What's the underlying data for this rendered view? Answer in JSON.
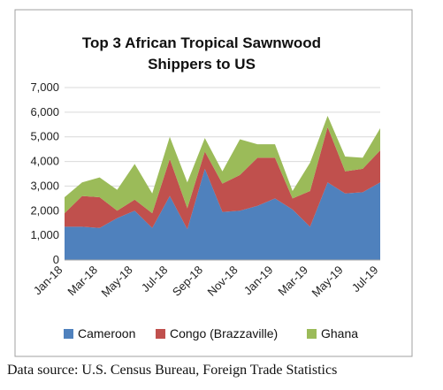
{
  "source_note": "Data source: U.S. Census Bureau, Foreign Trade Statistics",
  "chart_data": {
    "type": "area",
    "stacked": true,
    "title": "Top 3 African Tropical Sawnwood",
    "subtitle": "Shippers to US",
    "ylim": [
      0,
      7000
    ],
    "yticks": [
      "0",
      "1,000",
      "2,000",
      "3,000",
      "4,000",
      "5,000",
      "6,000",
      "7,000"
    ],
    "ytick_values": [
      0,
      1000,
      2000,
      3000,
      4000,
      5000,
      6000,
      7000
    ],
    "grid": true,
    "legend_position": "bottom",
    "x": [
      "Jan-18",
      "Feb-18",
      "Mar-18",
      "Apr-18",
      "May-18",
      "Jun-18",
      "Jul-18",
      "Aug-18",
      "Sep-18",
      "Oct-18",
      "Nov-18",
      "Dec-18",
      "Jan-19",
      "Feb-19",
      "Mar-19",
      "Apr-19",
      "May-19",
      "Jun-19",
      "Jul-19"
    ],
    "x_tick_labels": [
      "Jan-18",
      "Mar-18",
      "May-18",
      "Jul-18",
      "Sep-18",
      "Nov-18",
      "Jan-19",
      "Mar-19",
      "May-19",
      "Jul-19"
    ],
    "series": [
      {
        "name": "Cameroon",
        "color": "#4f81bd",
        "values": [
          1350,
          1350,
          1300,
          1700,
          2000,
          1300,
          2600,
          1250,
          3700,
          1950,
          2000,
          2200,
          2500,
          2050,
          1350,
          3150,
          2700,
          2750,
          3150
        ]
      },
      {
        "name": "Congo (Brazzaville)",
        "color": "#c0504d",
        "values": [
          550,
          1250,
          1250,
          300,
          450,
          600,
          1500,
          850,
          700,
          1150,
          1450,
          1950,
          1650,
          450,
          1450,
          2250,
          900,
          950,
          1300
        ]
      },
      {
        "name": "Ghana",
        "color": "#9bbb59",
        "values": [
          650,
          550,
          800,
          850,
          1450,
          800,
          900,
          1050,
          550,
          500,
          1450,
          550,
          550,
          300,
          1150,
          450,
          600,
          450,
          900
        ]
      }
    ]
  }
}
